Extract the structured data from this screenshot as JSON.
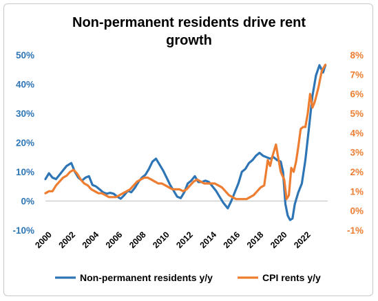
{
  "chart_data": {
    "type": "line",
    "title_line1": "Non-permanent residents drive rent",
    "title_line2": "growth",
    "left_axis": {
      "min": -10,
      "max": 50,
      "step": 10,
      "ticks": [
        "-10%",
        "0%",
        "10%",
        "20%",
        "30%",
        "40%",
        "50%"
      ],
      "color": "#2e75b6"
    },
    "right_axis": {
      "min": -1,
      "max": 8,
      "step": 1,
      "ticks": [
        "-1%",
        "0%",
        "1%",
        "2%",
        "3%",
        "4%",
        "5%",
        "6%",
        "7%",
        "8%"
      ],
      "color": "#ed7d31"
    },
    "x_axis": {
      "min": 2000,
      "max": 2024,
      "ticks": [
        "2000",
        "2002",
        "2004",
        "2006",
        "2008",
        "2010",
        "2012",
        "2014",
        "2016",
        "2018",
        "2020",
        "2022"
      ]
    },
    "series": [
      {
        "name": "Non-permanent residents y/y",
        "axis": "left",
        "color": "#2e75b6",
        "points": [
          [
            2000.0,
            7.5
          ],
          [
            2000.3,
            9.5
          ],
          [
            2000.6,
            8.0
          ],
          [
            2000.9,
            7.5
          ],
          [
            2001.2,
            9.0
          ],
          [
            2001.5,
            10.5
          ],
          [
            2001.8,
            12.0
          ],
          [
            2002.2,
            13.0
          ],
          [
            2002.5,
            10.0
          ],
          [
            2002.8,
            8.0
          ],
          [
            2003.1,
            7.0
          ],
          [
            2003.4,
            8.0
          ],
          [
            2003.7,
            8.5
          ],
          [
            2004.0,
            5.5
          ],
          [
            2004.3,
            5.0
          ],
          [
            2004.6,
            4.0
          ],
          [
            2004.9,
            3.0
          ],
          [
            2005.2,
            2.5
          ],
          [
            2005.5,
            2.8
          ],
          [
            2005.8,
            2.5
          ],
          [
            2006.1,
            1.5
          ],
          [
            2006.4,
            0.8
          ],
          [
            2006.7,
            2.0
          ],
          [
            2007.0,
            3.5
          ],
          [
            2007.3,
            3.0
          ],
          [
            2007.6,
            4.5
          ],
          [
            2007.9,
            6.5
          ],
          [
            2008.2,
            8.0
          ],
          [
            2008.5,
            9.0
          ],
          [
            2008.8,
            11.0
          ],
          [
            2009.1,
            13.5
          ],
          [
            2009.4,
            14.5
          ],
          [
            2009.7,
            12.5
          ],
          [
            2010.0,
            10.5
          ],
          [
            2010.3,
            8.0
          ],
          [
            2010.6,
            5.5
          ],
          [
            2010.9,
            3.5
          ],
          [
            2011.2,
            1.5
          ],
          [
            2011.5,
            1.0
          ],
          [
            2011.8,
            3.0
          ],
          [
            2012.1,
            6.0
          ],
          [
            2012.4,
            7.0
          ],
          [
            2012.7,
            8.5
          ],
          [
            2013.0,
            6.5
          ],
          [
            2013.3,
            6.5
          ],
          [
            2013.6,
            7.0
          ],
          [
            2013.9,
            6.5
          ],
          [
            2014.2,
            5.0
          ],
          [
            2014.5,
            3.5
          ],
          [
            2014.8,
            1.5
          ],
          [
            2015.1,
            -0.5
          ],
          [
            2015.5,
            -2.5
          ],
          [
            2015.8,
            0.0
          ],
          [
            2016.1,
            3.0
          ],
          [
            2016.4,
            6.0
          ],
          [
            2016.7,
            10.0
          ],
          [
            2017.0,
            11.0
          ],
          [
            2017.3,
            13.0
          ],
          [
            2017.6,
            14.0
          ],
          [
            2017.9,
            15.5
          ],
          [
            2018.2,
            16.5
          ],
          [
            2018.5,
            15.5
          ],
          [
            2018.8,
            15.0
          ],
          [
            2019.1,
            14.5
          ],
          [
            2019.4,
            15.0
          ],
          [
            2019.7,
            14.0
          ],
          [
            2020.0,
            13.5
          ],
          [
            2020.2,
            10.0
          ],
          [
            2020.4,
            -1.0
          ],
          [
            2020.6,
            -5.0
          ],
          [
            2020.8,
            -6.5
          ],
          [
            2021.0,
            -6.0
          ],
          [
            2021.2,
            -1.0
          ],
          [
            2021.5,
            3.0
          ],
          [
            2021.8,
            6.0
          ],
          [
            2022.1,
            14.0
          ],
          [
            2022.4,
            25.0
          ],
          [
            2022.7,
            36.0
          ],
          [
            2023.0,
            43.0
          ],
          [
            2023.3,
            46.5
          ],
          [
            2023.6,
            44.0
          ],
          [
            2023.8,
            46.5
          ]
        ]
      },
      {
        "name": "CPI rents y/y",
        "axis": "right",
        "color": "#ed7d31",
        "points": [
          [
            2000.0,
            0.9
          ],
          [
            2000.3,
            1.0
          ],
          [
            2000.6,
            1.0
          ],
          [
            2000.9,
            1.3
          ],
          [
            2001.2,
            1.5
          ],
          [
            2001.5,
            1.7
          ],
          [
            2001.8,
            1.8
          ],
          [
            2002.1,
            2.0
          ],
          [
            2002.4,
            2.1
          ],
          [
            2002.7,
            1.9
          ],
          [
            2003.0,
            1.6
          ],
          [
            2003.3,
            1.4
          ],
          [
            2003.6,
            1.3
          ],
          [
            2003.9,
            1.1
          ],
          [
            2004.2,
            1.0
          ],
          [
            2004.5,
            0.9
          ],
          [
            2004.8,
            0.9
          ],
          [
            2005.1,
            0.8
          ],
          [
            2005.4,
            0.7
          ],
          [
            2005.7,
            0.7
          ],
          [
            2006.0,
            0.7
          ],
          [
            2006.3,
            0.8
          ],
          [
            2006.6,
            0.9
          ],
          [
            2006.9,
            1.0
          ],
          [
            2007.2,
            1.1
          ],
          [
            2007.5,
            1.3
          ],
          [
            2007.8,
            1.5
          ],
          [
            2008.1,
            1.6
          ],
          [
            2008.4,
            1.7
          ],
          [
            2008.7,
            1.7
          ],
          [
            2009.0,
            1.6
          ],
          [
            2009.3,
            1.5
          ],
          [
            2009.6,
            1.4
          ],
          [
            2009.9,
            1.4
          ],
          [
            2010.2,
            1.3
          ],
          [
            2010.5,
            1.2
          ],
          [
            2010.8,
            1.1
          ],
          [
            2011.1,
            1.1
          ],
          [
            2011.4,
            1.1
          ],
          [
            2011.7,
            1.0
          ],
          [
            2012.0,
            1.1
          ],
          [
            2012.3,
            1.3
          ],
          [
            2012.6,
            1.5
          ],
          [
            2012.9,
            1.6
          ],
          [
            2013.2,
            1.5
          ],
          [
            2013.5,
            1.4
          ],
          [
            2013.8,
            1.4
          ],
          [
            2014.1,
            1.4
          ],
          [
            2014.4,
            1.4
          ],
          [
            2014.7,
            1.3
          ],
          [
            2015.0,
            1.2
          ],
          [
            2015.3,
            1.0
          ],
          [
            2015.6,
            0.8
          ],
          [
            2015.9,
            0.7
          ],
          [
            2016.2,
            0.6
          ],
          [
            2016.5,
            0.6
          ],
          [
            2016.8,
            0.6
          ],
          [
            2017.1,
            0.6
          ],
          [
            2017.4,
            0.7
          ],
          [
            2017.7,
            0.8
          ],
          [
            2018.0,
            1.0
          ],
          [
            2018.3,
            1.2
          ],
          [
            2018.6,
            1.3
          ],
          [
            2018.9,
            2.6
          ],
          [
            2019.1,
            2.3
          ],
          [
            2019.3,
            2.8
          ],
          [
            2019.6,
            3.4
          ],
          [
            2019.8,
            2.7
          ],
          [
            2020.0,
            2.0
          ],
          [
            2020.3,
            1.6
          ],
          [
            2020.5,
            0.6
          ],
          [
            2020.7,
            0.8
          ],
          [
            2020.9,
            2.2
          ],
          [
            2021.1,
            2.0
          ],
          [
            2021.3,
            2.5
          ],
          [
            2021.5,
            3.3
          ],
          [
            2021.7,
            4.2
          ],
          [
            2021.9,
            4.3
          ],
          [
            2022.1,
            4.3
          ],
          [
            2022.3,
            5.0
          ],
          [
            2022.5,
            6.0
          ],
          [
            2022.7,
            5.3
          ],
          [
            2022.9,
            5.6
          ],
          [
            2023.2,
            6.3
          ],
          [
            2023.5,
            7.2
          ],
          [
            2023.8,
            7.5
          ]
        ]
      }
    ],
    "legend": {
      "placement": "bottom"
    },
    "grid": false
  }
}
